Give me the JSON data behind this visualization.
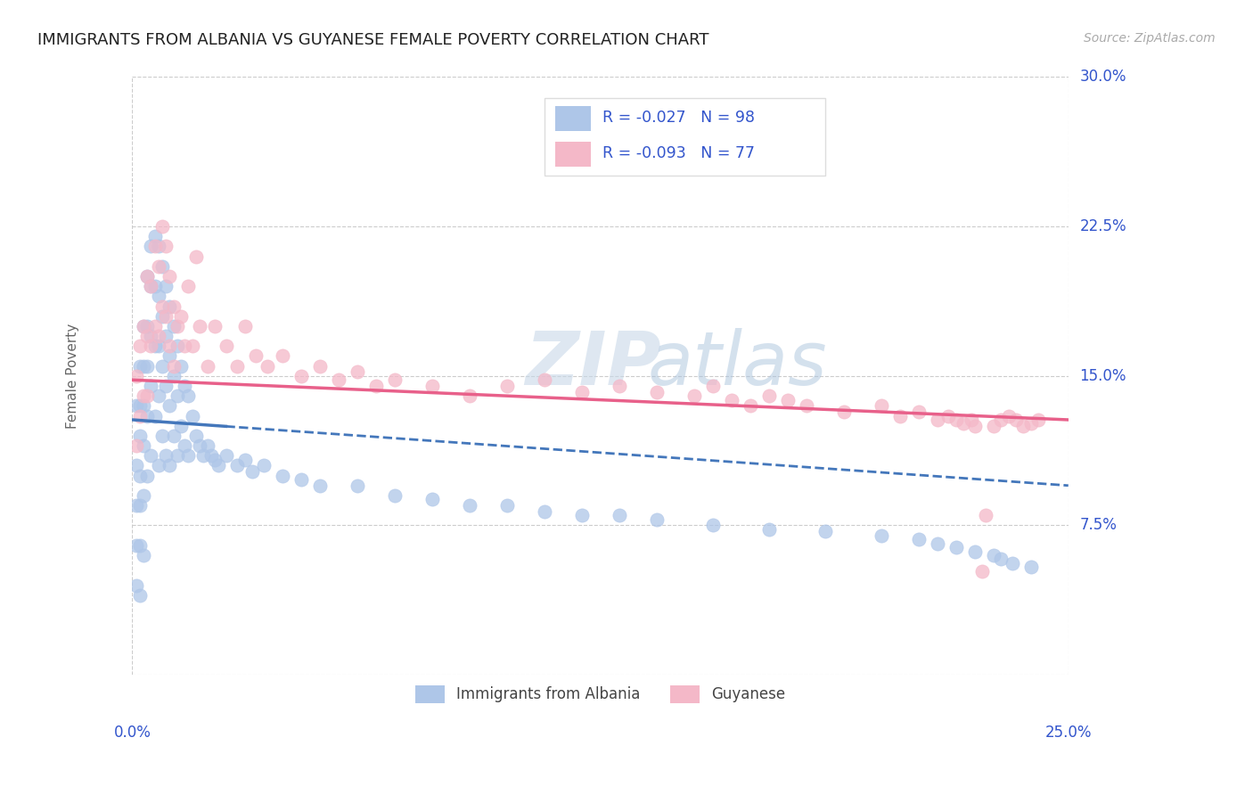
{
  "title": "IMMIGRANTS FROM ALBANIA VS GUYANESE FEMALE POVERTY CORRELATION CHART",
  "source": "Source: ZipAtlas.com",
  "ylabel": "Female Poverty",
  "xmin": 0.0,
  "xmax": 0.25,
  "ymin": 0.0,
  "ymax": 0.3,
  "yticks": [
    0.0,
    0.075,
    0.15,
    0.225,
    0.3
  ],
  "ytick_labels": [
    "",
    "7.5%",
    "15.0%",
    "22.5%",
    "30.0%"
  ],
  "blue_color": "#aec6e8",
  "pink_color": "#f4b8c8",
  "blue_line_color": "#4477bb",
  "pink_line_color": "#e8608a",
  "legend_text_color": "#3355cc",
  "watermark_zip": "ZIP",
  "watermark_atlas": "atlas",
  "legend": {
    "blue_R": "-0.027",
    "blue_N": "98",
    "pink_R": "-0.093",
    "pink_N": "77"
  },
  "blue_trend_x0": 0.0,
  "blue_trend_y0": 0.128,
  "blue_trend_x1": 0.25,
  "blue_trend_y1": 0.095,
  "blue_trend_solid_end": 0.025,
  "pink_trend_x0": 0.0,
  "pink_trend_y0": 0.148,
  "pink_trend_x1": 0.25,
  "pink_trend_y1": 0.128,
  "blue_scatter_x": [
    0.001,
    0.001,
    0.001,
    0.001,
    0.001,
    0.002,
    0.002,
    0.002,
    0.002,
    0.002,
    0.002,
    0.002,
    0.003,
    0.003,
    0.003,
    0.003,
    0.003,
    0.003,
    0.004,
    0.004,
    0.004,
    0.004,
    0.004,
    0.005,
    0.005,
    0.005,
    0.005,
    0.005,
    0.006,
    0.006,
    0.006,
    0.006,
    0.007,
    0.007,
    0.007,
    0.007,
    0.007,
    0.008,
    0.008,
    0.008,
    0.008,
    0.009,
    0.009,
    0.009,
    0.009,
    0.01,
    0.01,
    0.01,
    0.01,
    0.011,
    0.011,
    0.011,
    0.012,
    0.012,
    0.012,
    0.013,
    0.013,
    0.014,
    0.014,
    0.015,
    0.015,
    0.016,
    0.017,
    0.018,
    0.019,
    0.02,
    0.021,
    0.022,
    0.023,
    0.025,
    0.028,
    0.03,
    0.032,
    0.035,
    0.04,
    0.045,
    0.05,
    0.06,
    0.07,
    0.08,
    0.09,
    0.1,
    0.11,
    0.12,
    0.13,
    0.14,
    0.155,
    0.17,
    0.185,
    0.2,
    0.21,
    0.215,
    0.22,
    0.225,
    0.23,
    0.232,
    0.235,
    0.24
  ],
  "blue_scatter_y": [
    0.135,
    0.105,
    0.085,
    0.065,
    0.045,
    0.155,
    0.135,
    0.12,
    0.1,
    0.085,
    0.065,
    0.04,
    0.175,
    0.155,
    0.135,
    0.115,
    0.09,
    0.06,
    0.2,
    0.175,
    0.155,
    0.13,
    0.1,
    0.215,
    0.195,
    0.17,
    0.145,
    0.11,
    0.22,
    0.195,
    0.165,
    0.13,
    0.215,
    0.19,
    0.165,
    0.14,
    0.105,
    0.205,
    0.18,
    0.155,
    0.12,
    0.195,
    0.17,
    0.145,
    0.11,
    0.185,
    0.16,
    0.135,
    0.105,
    0.175,
    0.15,
    0.12,
    0.165,
    0.14,
    0.11,
    0.155,
    0.125,
    0.145,
    0.115,
    0.14,
    0.11,
    0.13,
    0.12,
    0.115,
    0.11,
    0.115,
    0.11,
    0.108,
    0.105,
    0.11,
    0.105,
    0.108,
    0.102,
    0.105,
    0.1,
    0.098,
    0.095,
    0.095,
    0.09,
    0.088,
    0.085,
    0.085,
    0.082,
    0.08,
    0.08,
    0.078,
    0.075,
    0.073,
    0.072,
    0.07,
    0.068,
    0.066,
    0.064,
    0.062,
    0.06,
    0.058,
    0.056,
    0.054
  ],
  "pink_scatter_x": [
    0.001,
    0.001,
    0.002,
    0.002,
    0.003,
    0.003,
    0.004,
    0.004,
    0.004,
    0.005,
    0.005,
    0.006,
    0.006,
    0.007,
    0.007,
    0.008,
    0.008,
    0.009,
    0.009,
    0.01,
    0.01,
    0.011,
    0.011,
    0.012,
    0.013,
    0.014,
    0.015,
    0.016,
    0.017,
    0.018,
    0.02,
    0.022,
    0.025,
    0.028,
    0.03,
    0.033,
    0.036,
    0.04,
    0.045,
    0.05,
    0.055,
    0.06,
    0.065,
    0.07,
    0.08,
    0.09,
    0.1,
    0.11,
    0.12,
    0.13,
    0.14,
    0.15,
    0.155,
    0.16,
    0.165,
    0.17,
    0.175,
    0.18,
    0.19,
    0.2,
    0.205,
    0.21,
    0.215,
    0.218,
    0.22,
    0.222,
    0.224,
    0.225,
    0.227,
    0.228,
    0.23,
    0.232,
    0.234,
    0.236,
    0.238,
    0.24,
    0.242
  ],
  "pink_scatter_y": [
    0.15,
    0.115,
    0.165,
    0.13,
    0.175,
    0.14,
    0.2,
    0.17,
    0.14,
    0.195,
    0.165,
    0.215,
    0.175,
    0.205,
    0.17,
    0.225,
    0.185,
    0.215,
    0.18,
    0.2,
    0.165,
    0.185,
    0.155,
    0.175,
    0.18,
    0.165,
    0.195,
    0.165,
    0.21,
    0.175,
    0.155,
    0.175,
    0.165,
    0.155,
    0.175,
    0.16,
    0.155,
    0.16,
    0.15,
    0.155,
    0.148,
    0.152,
    0.145,
    0.148,
    0.145,
    0.14,
    0.145,
    0.148,
    0.142,
    0.145,
    0.142,
    0.14,
    0.145,
    0.138,
    0.135,
    0.14,
    0.138,
    0.135,
    0.132,
    0.135,
    0.13,
    0.132,
    0.128,
    0.13,
    0.128,
    0.126,
    0.128,
    0.125,
    0.052,
    0.08,
    0.125,
    0.128,
    0.13,
    0.128,
    0.125,
    0.126,
    0.128
  ]
}
